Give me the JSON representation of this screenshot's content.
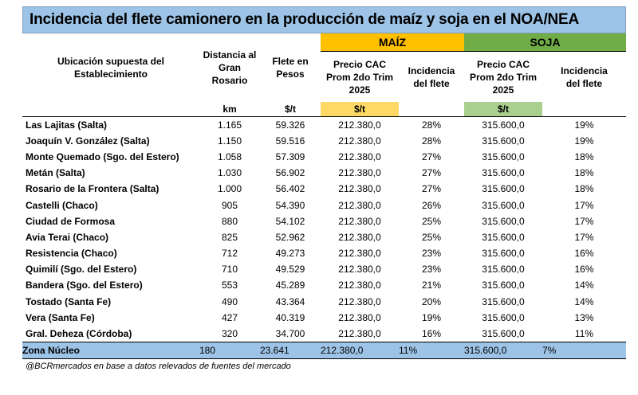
{
  "title": "Incidencia del flete camionero en la producción de maíz y soja en el NOA/NEA",
  "groups": {
    "maiz": "MAÍZ",
    "soja": "SOJA"
  },
  "headers": {
    "location_line1": "Ubicación supuesta del",
    "location_line2": "Establecimiento",
    "distance_line1": "Distancia al",
    "distance_line2": "Gran Rosario",
    "freight_line1": "Flete en",
    "freight_line2": "Pesos",
    "price_line1": "Precio CAC",
    "price_line2": "Prom 2do Trim",
    "price_line3": "2025",
    "incidence_line1": "Incidencia",
    "incidence_line2": "del flete"
  },
  "units": {
    "distance": "km",
    "freight": "$/t",
    "maiz_price": "$/t",
    "soja_price": "$/t"
  },
  "rows": [
    {
      "location": "Las Lajitas (Salta)",
      "km": "1.165",
      "freight": "59.326",
      "maiz_price": "212.380,0",
      "maiz_inc": "28%",
      "soja_price": "315.600,0",
      "soja_inc": "19%"
    },
    {
      "location": "Joaquín V. González (Salta)",
      "km": "1.150",
      "freight": "59.516",
      "maiz_price": "212.380,0",
      "maiz_inc": "28%",
      "soja_price": "315.600,0",
      "soja_inc": "19%"
    },
    {
      "location": "Monte Quemado (Sgo. del Estero)",
      "km": "1.058",
      "freight": "57.309",
      "maiz_price": "212.380,0",
      "maiz_inc": "27%",
      "soja_price": "315.600,0",
      "soja_inc": "18%"
    },
    {
      "location": "Metán (Salta)",
      "km": "1.030",
      "freight": "56.902",
      "maiz_price": "212.380,0",
      "maiz_inc": "27%",
      "soja_price": "315.600,0",
      "soja_inc": "18%"
    },
    {
      "location": "Rosario de la Frontera (Salta)",
      "km": "1.000",
      "freight": "56.402",
      "maiz_price": "212.380,0",
      "maiz_inc": "27%",
      "soja_price": "315.600,0",
      "soja_inc": "18%"
    },
    {
      "location": "Castelli (Chaco)",
      "km": "905",
      "freight": "54.390",
      "maiz_price": "212.380,0",
      "maiz_inc": "26%",
      "soja_price": "315.600,0",
      "soja_inc": "17%"
    },
    {
      "location": "Ciudad de Formosa",
      "km": "880",
      "freight": "54.102",
      "maiz_price": "212.380,0",
      "maiz_inc": "25%",
      "soja_price": "315.600,0",
      "soja_inc": "17%"
    },
    {
      "location": "Avia Terai (Chaco)",
      "km": "825",
      "freight": "52.962",
      "maiz_price": "212.380,0",
      "maiz_inc": "25%",
      "soja_price": "315.600,0",
      "soja_inc": "17%"
    },
    {
      "location": "Resistencia (Chaco)",
      "km": "712",
      "freight": "49.273",
      "maiz_price": "212.380,0",
      "maiz_inc": "23%",
      "soja_price": "315.600,0",
      "soja_inc": "16%"
    },
    {
      "location": "Quimilí (Sgo. del Estero)",
      "km": "710",
      "freight": "49.529",
      "maiz_price": "212.380,0",
      "maiz_inc": "23%",
      "soja_price": "315.600,0",
      "soja_inc": "16%"
    },
    {
      "location": "Bandera (Sgo. del Estero)",
      "km": "553",
      "freight": "45.289",
      "maiz_price": "212.380,0",
      "maiz_inc": "21%",
      "soja_price": "315.600,0",
      "soja_inc": "14%"
    },
    {
      "location": "Tostado (Santa Fe)",
      "km": "490",
      "freight": "43.364",
      "maiz_price": "212.380,0",
      "maiz_inc": "20%",
      "soja_price": "315.600,0",
      "soja_inc": "14%"
    },
    {
      "location": "Vera (Santa Fe)",
      "km": "427",
      "freight": "40.319",
      "maiz_price": "212.380,0",
      "maiz_inc": "19%",
      "soja_price": "315.600,0",
      "soja_inc": "13%"
    },
    {
      "location": "Gral. Deheza (Córdoba)",
      "km": "320",
      "freight": "34.700",
      "maiz_price": "212.380,0",
      "maiz_inc": "16%",
      "soja_price": "315.600,0",
      "soja_inc": "11%"
    }
  ],
  "total_row": {
    "location": "Zona Núcleo",
    "km": "180",
    "freight": "23.641",
    "maiz_price": "212.380,0",
    "maiz_inc": "11%",
    "soja_price": "315.600,0",
    "soja_inc": "7%"
  },
  "footer": "@BCRmercados en base a datos relevados de fuentes del mercado",
  "colors": {
    "title_bg": "#9dc3e6",
    "maiz": "#ffc000",
    "maiz_unit": "#ffd966",
    "soja": "#70ad47",
    "soja_unit": "#a9d08e"
  }
}
